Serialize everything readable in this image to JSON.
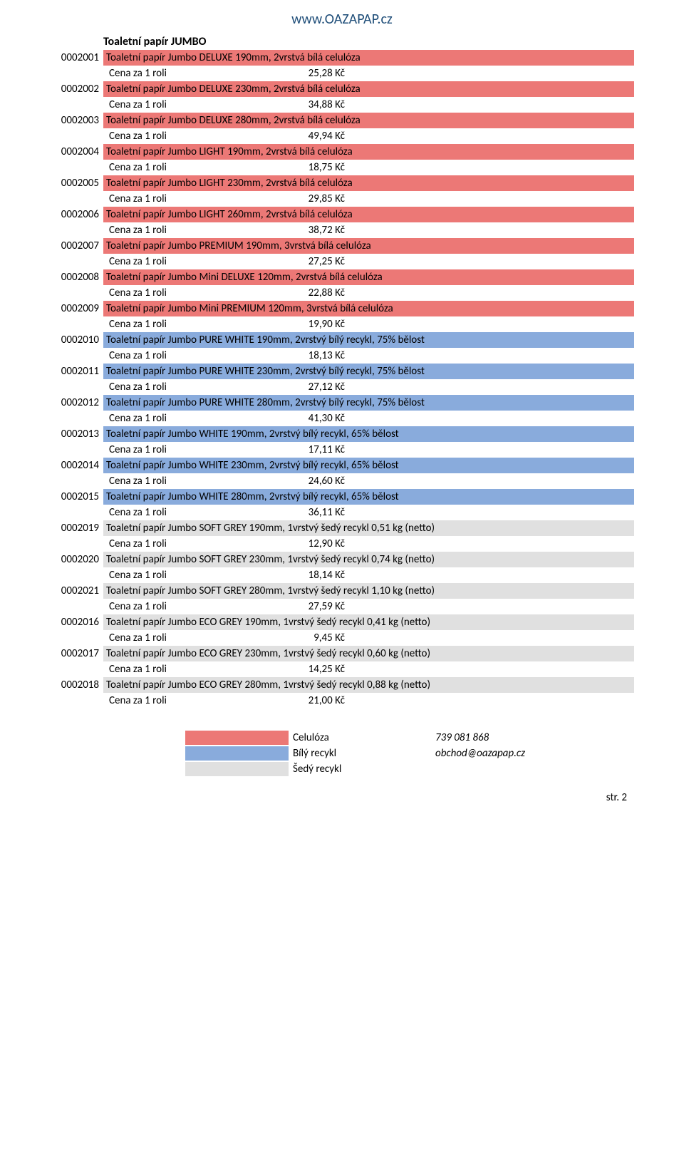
{
  "header_url": "www.OAZAPAP.cz",
  "section_title": "Toaletní papír JUMBO",
  "price_label": "Cena za 1 roli",
  "colors": {
    "red": "#ec7876",
    "blue": "#89abdc",
    "grey": "#e0e0e0"
  },
  "items": [
    {
      "code": "0002001",
      "desc": "Toaletní papír Jumbo DELUXE 190mm, 2vrstvá bílá celulóza",
      "price": "25,28 Kč",
      "color": "#ec7876"
    },
    {
      "code": "0002002",
      "desc": " Toaletní papír Jumbo DELUXE 230mm, 2vrstvá bílá celulóza",
      "price": "34,88 Kč",
      "color": "#ec7876"
    },
    {
      "code": "0002003",
      "desc": "Toaletní papír Jumbo DELUXE 280mm, 2vrstvá bílá celulóza",
      "price": "49,94 Kč",
      "color": "#ec7876"
    },
    {
      "code": "0002004",
      "desc": " Toaletní papír Jumbo LIGHT 190mm, 2vrstvá bílá celulóza",
      "price": "18,75 Kč",
      "color": "#ec7876"
    },
    {
      "code": "0002005",
      "desc": "Toaletní papír Jumbo LIGHT 230mm, 2vrstvá bílá celulóza",
      "price": "29,85 Kč",
      "color": "#ec7876"
    },
    {
      "code": "0002006",
      "desc": "Toaletní papír Jumbo LIGHT 260mm, 2vrstvá bílá celulóza",
      "price": "38,72 Kč",
      "color": "#ec7876"
    },
    {
      "code": "0002007",
      "desc": "Toaletní papír Jumbo PREMIUM 190mm, 3vrstvá bílá celulóza",
      "price": "27,25 Kč",
      "color": "#ec7876"
    },
    {
      "code": "0002008",
      "desc": "Toaletní papír Jumbo Mini DELUXE 120mm, 2vrstvá bílá celulóza",
      "price": "22,88 Kč",
      "color": "#ec7876"
    },
    {
      "code": "0002009",
      "desc": "Toaletní papír Jumbo Mini PREMIUM 120mm, 3vrstvá bílá celulóza",
      "price": "19,90 Kč",
      "color": "#ec7876"
    },
    {
      "code": "0002010",
      "desc": " Toaletní papír Jumbo PURE WHITE 190mm, 2vrstvý bílý recykl, 75% bělost",
      "price": "18,13 Kč",
      "color": "#89abdc"
    },
    {
      "code": "0002011",
      "desc": " Toaletní papír Jumbo PURE WHITE 230mm, 2vrstvý bílý recykl, 75% bělost",
      "price": "27,12 Kč",
      "color": "#89abdc"
    },
    {
      "code": "0002012",
      "desc": "Toaletní papír Jumbo PURE WHITE 280mm, 2vrstvý bílý recykl, 75% bělost",
      "price": "41,30 Kč",
      "color": "#89abdc"
    },
    {
      "code": "0002013",
      "desc": " Toaletní papír Jumbo WHITE 190mm, 2vrstvý bílý recykl, 65% bělost",
      "price": "17,11 Kč",
      "color": "#89abdc"
    },
    {
      "code": "0002014",
      "desc": "Toaletní papír Jumbo WHITE 230mm, 2vrstvý bílý recykl, 65% bělost",
      "price": "24,60 Kč",
      "color": "#89abdc"
    },
    {
      "code": "0002015",
      "desc": " Toaletní papír Jumbo WHITE 280mm, 2vrstvý bílý recykl, 65% bělost",
      "price": "36,11 Kč",
      "color": "#89abdc"
    },
    {
      "code": "0002019",
      "desc": "Toaletní papír Jumbo SOFT GREY 190mm, 1vrstvý šedý recykl 0,51 kg (netto)",
      "price": "12,90 Kč",
      "color": "#e0e0e0"
    },
    {
      "code": "0002020",
      "desc": "Toaletní papír Jumbo SOFT GREY 230mm, 1vrstvý šedý recykl 0,74 kg (netto)",
      "price": "18,14 Kč",
      "color": "#e0e0e0"
    },
    {
      "code": "0002021",
      "desc": " Toaletní papír Jumbo SOFT GREY 280mm, 1vrstvý šedý recykl 1,10 kg (netto)",
      "price": "27,59 Kč",
      "color": "#e0e0e0"
    },
    {
      "code": "0002016",
      "desc": " Toaletní papír Jumbo ECO GREY 190mm, 1vrstvý šedý recykl 0,41 kg (netto)",
      "price": "9,45 Kč",
      "color": "#e0e0e0"
    },
    {
      "code": "0002017",
      "desc": "Toaletní papír Jumbo ECO GREY 230mm, 1vrstvý šedý recykl 0,60 kg (netto)",
      "price": "14,25 Kč",
      "color": "#e0e0e0"
    },
    {
      "code": "0002018",
      "desc": "Toaletní papír Jumbo ECO GREY 280mm, 1vrstvý šedý recykl 0,88 kg (netto)",
      "price": "21,00 Kč",
      "color": "#e0e0e0"
    }
  ],
  "legend": [
    {
      "color": "#ec7876",
      "label": "Celulóza",
      "right": "739 081 868"
    },
    {
      "color": "#89abdc",
      "label": "Bílý recykl",
      "right": "obchod@oazapap.cz"
    },
    {
      "color": "#e0e0e0",
      "label": "Šedý recykl",
      "right": ""
    }
  ],
  "footer": "str. 2"
}
